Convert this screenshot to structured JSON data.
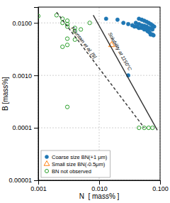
{
  "chart_data": {
    "type": "scatter",
    "xlabel": "N  [ mass% ]",
    "ylabel": "B [mass%]",
    "log": true,
    "grid": true,
    "legend": "lower left",
    "xlim": [
      0.001,
      0.1
    ],
    "ylim": [
      1e-05,
      0.02
    ],
    "xticks": [
      0.001,
      {
        "value": 0.01,
        "label": "0.010"
      },
      {
        "value": 0.1,
        "label": "0.100"
      }
    ],
    "yticks": [
      1e-05,
      0.0001,
      {
        "value": 0.001,
        "label": "0.0010"
      },
      {
        "value": 0.01,
        "label": "0.0100"
      }
    ],
    "series": [
      {
        "name": "Coarse size BN(+1 μm)",
        "type": "scatter",
        "marker": "circle",
        "x": [
          0.013,
          0.02,
          0.025,
          0.03,
          0.035,
          0.038,
          0.042,
          0.045,
          0.05,
          0.055,
          0.06,
          0.062,
          0.065,
          0.068,
          0.07,
          0.075,
          0.078,
          0.04,
          0.045,
          0.05,
          0.055,
          0.06,
          0.065,
          0.07,
          0.075,
          0.045,
          0.05,
          0.055,
          0.06,
          0.065,
          0.07,
          0.075,
          0.08,
          0.03
        ],
        "values": [
          0.012,
          0.0115,
          0.01,
          0.0095,
          0.009,
          0.0085,
          0.0085,
          0.008,
          0.008,
          0.0075,
          0.0075,
          0.007,
          0.0068,
          0.0065,
          0.006,
          0.006,
          0.0058,
          0.01,
          0.0095,
          0.009,
          0.0088,
          0.0085,
          0.008,
          0.0078,
          0.0075,
          0.012,
          0.0115,
          0.011,
          0.0105,
          0.01,
          0.0095,
          0.009,
          0.0085,
          0.001
        ]
      },
      {
        "name": "Small size BN(-0.5μm)",
        "type": "scatter",
        "marker": "triangle-open",
        "x": [
          0.016
        ],
        "values": [
          0.0038
        ]
      },
      {
        "name": "BN not observed",
        "type": "scatter",
        "marker": "circle-open",
        "x": [
          0.001,
          0.002,
          0.0025,
          0.003,
          0.0025,
          0.003,
          0.003,
          0.004,
          0.004,
          0.005,
          0.007,
          0.003,
          0.004,
          0.003,
          0.0025,
          0.003,
          0.045,
          0.055,
          0.065,
          0.075
        ],
        "values": [
          0.0135,
          0.014,
          0.012,
          0.011,
          0.01,
          0.0095,
          0.0085,
          0.008,
          0.007,
          0.0075,
          0.01,
          0.005,
          0.0048,
          0.0038,
          0.0035,
          0.00025,
          0.0001,
          0.0001,
          0.0001,
          0.0001
        ]
      },
      {
        "type": "line",
        "line_style": "solid",
        "x": [
          0.008,
          0.09
        ],
        "values": [
          0.014,
          9e-05
        ]
      },
      {
        "type": "line",
        "line_style": "dashed",
        "x": [
          0.002,
          0.055
        ],
        "values": [
          0.016,
          0.0001
        ]
      }
    ],
    "annotations": [
      {
        "text": "Fountain et al. [9]",
        "x": 0.0032,
        "y": 0.0075
      },
      {
        "text": "Solubility at 1150°C",
        "x": 0.013,
        "y": 0.006
      }
    ]
  }
}
